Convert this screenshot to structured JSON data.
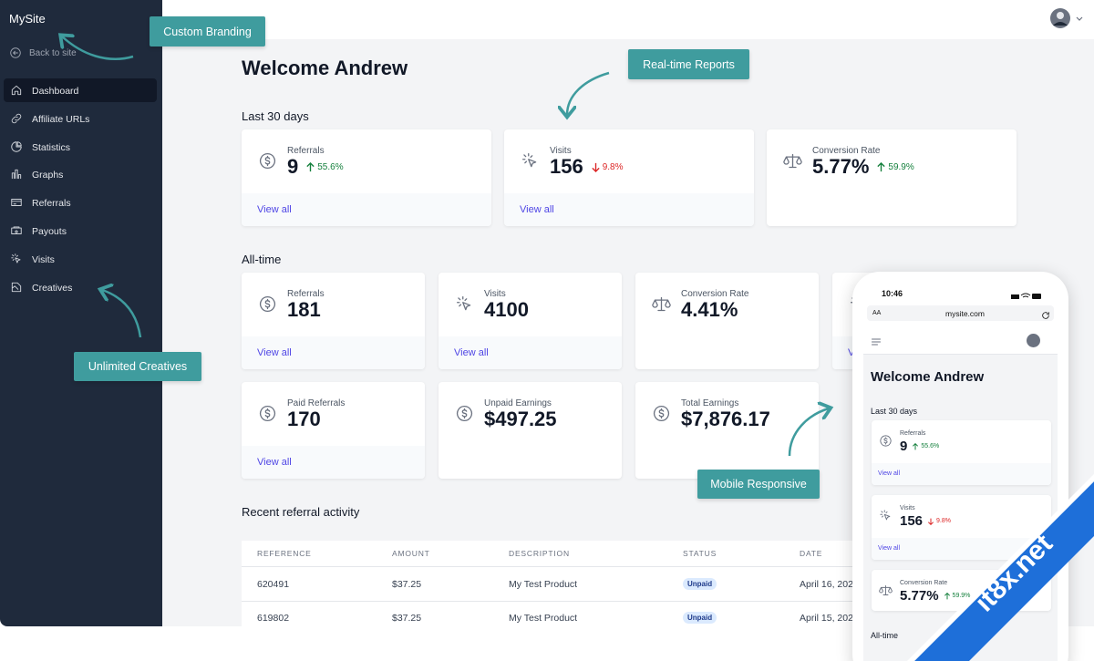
{
  "sidebar": {
    "brand": "MySite",
    "back": "Back to site",
    "nav": [
      "Dashboard",
      "Affiliate URLs",
      "Statistics",
      "Graphs",
      "Referrals",
      "Payouts",
      "Visits",
      "Creatives"
    ]
  },
  "callouts": [
    "Custom Branding",
    "Real-time Reports",
    "Unlimited Creatives",
    "Mobile Responsive"
  ],
  "main": {
    "welcome": "Welcome Andrew",
    "view_all": "View all",
    "last30": {
      "title": "Last 30 days",
      "cards": [
        {
          "label": "Referrals",
          "value": "9",
          "change": "55.6%",
          "trend": "up"
        },
        {
          "label": "Visits",
          "value": "156",
          "change": "9.8%",
          "trend": "down"
        },
        {
          "label": "Conversion Rate",
          "value": "5.77%",
          "change": "59.9%",
          "trend": "up"
        }
      ]
    },
    "alltime": {
      "title": "All-time",
      "cards": [
        {
          "label": "Referrals",
          "value": "181"
        },
        {
          "label": "Visits",
          "value": "4100"
        },
        {
          "label": "Conversion Rate",
          "value": "4.41%"
        },
        {
          "label": "Paid Referrals",
          "value": "170"
        },
        {
          "label": "Unpaid Earnings",
          "value": "$497.25"
        },
        {
          "label": "Total Earnings",
          "value": "$7,876.17"
        }
      ]
    },
    "recent": {
      "title": "Recent referral activity",
      "columns": [
        "REFERENCE",
        "AMOUNT",
        "DESCRIPTION",
        "STATUS",
        "DATE"
      ],
      "rows": [
        [
          "620491",
          "$37.25",
          "My Test Product",
          "Unpaid",
          "April 16, 202"
        ],
        [
          "619802",
          "$37.25",
          "My Test Product",
          "Unpaid",
          "April 15, 202"
        ]
      ]
    }
  },
  "phone": {
    "time": "10:46",
    "text_size": "AA",
    "url": "mysite.com",
    "welcome": "Welcome Andrew",
    "section": "Last 30 days",
    "view_all": "View all",
    "next_section": "All-time",
    "cards": [
      {
        "label": "Referrals",
        "value": "9",
        "change": "55.6%",
        "trend": "up"
      },
      {
        "label": "Visits",
        "value": "156",
        "change": "9.8%",
        "trend": "down"
      },
      {
        "label": "Conversion Rate",
        "value": "5.77%",
        "change": "59.9%",
        "trend": "up"
      }
    ]
  },
  "watermark": "it8x.net"
}
